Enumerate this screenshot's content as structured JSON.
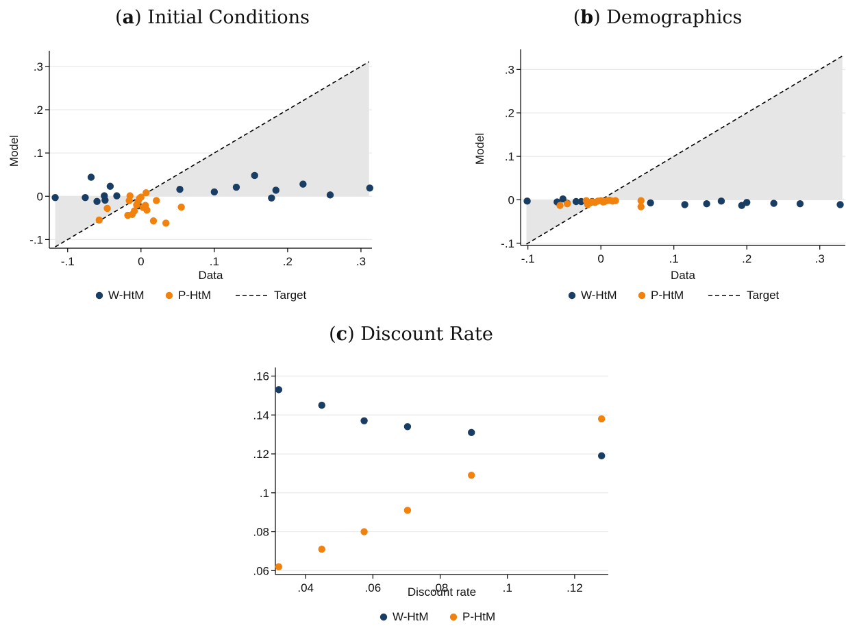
{
  "colors": {
    "w_htm": "#1a3e63",
    "p_htm": "#f2820e",
    "target": "#000000",
    "shade": "#e6e6e6",
    "grid": "#e8e8e8"
  },
  "chart_data": [
    {
      "panel_label": "a",
      "title": "Initial Conditions",
      "type": "scatter",
      "xlabel": "Data",
      "ylabel": "Model",
      "xlim": [
        -0.125,
        0.315
      ],
      "ylim": [
        -0.12,
        0.33
      ],
      "xticks": [
        -0.1,
        0,
        0.1,
        0.2,
        0.3
      ],
      "xtick_labels": [
        "-.1",
        "0",
        ".1",
        ".2",
        ".3"
      ],
      "yticks": [
        -0.1,
        0,
        0.1,
        0.2,
        0.3
      ],
      "ytick_labels": [
        "-.1",
        "0",
        ".1",
        ".2",
        ".3"
      ],
      "target_line": true,
      "shaded_between_zero_and_target": true,
      "legend": [
        "W-HtM",
        "P-HtM",
        "Target"
      ],
      "series": [
        {
          "name": "W-HtM",
          "points": [
            [
              -0.117,
              -0.003
            ],
            [
              -0.076,
              -0.003
            ],
            [
              -0.068,
              0.044
            ],
            [
              -0.06,
              -0.012
            ],
            [
              -0.05,
              0.001
            ],
            [
              -0.049,
              -0.009
            ],
            [
              -0.042,
              0.023
            ],
            [
              -0.033,
              0.001
            ],
            [
              -0.003,
              -0.022
            ],
            [
              0.053,
              0.016
            ],
            [
              0.1,
              0.01
            ],
            [
              0.13,
              0.021
            ],
            [
              0.155,
              0.048
            ],
            [
              0.178,
              -0.004
            ],
            [
              0.184,
              0.014
            ],
            [
              0.221,
              0.028
            ],
            [
              0.258,
              0.003
            ],
            [
              0.312,
              0.019
            ]
          ]
        },
        {
          "name": "P-HtM",
          "points": [
            [
              -0.057,
              -0.055
            ],
            [
              -0.046,
              -0.028
            ],
            [
              -0.018,
              -0.044
            ],
            [
              -0.016,
              -0.01
            ],
            [
              -0.015,
              0.001
            ],
            [
              -0.012,
              -0.042
            ],
            [
              -0.009,
              -0.034
            ],
            [
              -0.006,
              -0.02
            ],
            [
              -0.004,
              -0.012
            ],
            [
              -0.002,
              -0.005
            ],
            [
              0.0,
              -0.002
            ],
            [
              0.003,
              -0.026
            ],
            [
              0.004,
              -0.025
            ],
            [
              0.006,
              -0.021
            ],
            [
              0.007,
              0.008
            ],
            [
              0.008,
              -0.032
            ],
            [
              0.017,
              -0.057
            ],
            [
              0.021,
              -0.01
            ],
            [
              0.034,
              -0.062
            ],
            [
              0.055,
              -0.025
            ]
          ]
        }
      ]
    },
    {
      "panel_label": "b",
      "title": "Demographics",
      "type": "scatter",
      "xlabel": "Data",
      "ylabel": "Model",
      "xlim": [
        -0.11,
        0.335
      ],
      "ylim": [
        -0.105,
        0.34
      ],
      "xticks": [
        -0.1,
        0,
        0.1,
        0.2,
        0.3
      ],
      "xtick_labels": [
        "-.1",
        "0",
        ".1",
        ".2",
        ".3"
      ],
      "yticks": [
        -0.1,
        0,
        0.1,
        0.2,
        0.3
      ],
      "ytick_labels": [
        "-.1",
        "0",
        ".1",
        ".2",
        ".3"
      ],
      "target_line": true,
      "shaded_between_zero_and_target": true,
      "legend": [
        "W-HtM",
        "P-HtM",
        "Target"
      ],
      "series": [
        {
          "name": "W-HtM",
          "points": [
            [
              -0.101,
              -0.003
            ],
            [
              -0.06,
              -0.005
            ],
            [
              -0.052,
              0.002
            ],
            [
              -0.046,
              -0.008
            ],
            [
              -0.034,
              -0.004
            ],
            [
              -0.027,
              -0.004
            ],
            [
              -0.012,
              -0.004
            ],
            [
              0.068,
              -0.007
            ],
            [
              0.115,
              -0.011
            ],
            [
              0.145,
              -0.009
            ],
            [
              0.165,
              -0.003
            ],
            [
              0.193,
              -0.013
            ],
            [
              0.2,
              -0.006
            ],
            [
              0.237,
              -0.008
            ],
            [
              0.273,
              -0.009
            ],
            [
              0.328,
              -0.011
            ]
          ]
        },
        {
          "name": "P-HtM",
          "points": [
            [
              -0.056,
              -0.013
            ],
            [
              -0.046,
              -0.009
            ],
            [
              -0.02,
              -0.002
            ],
            [
              -0.018,
              -0.011
            ],
            [
              -0.015,
              -0.006
            ],
            [
              -0.012,
              -0.005
            ],
            [
              -0.008,
              -0.006
            ],
            [
              -0.004,
              -0.003
            ],
            [
              0.0,
              -0.002
            ],
            [
              0.003,
              -0.005
            ],
            [
              0.005,
              -0.004
            ],
            [
              0.008,
              -0.002
            ],
            [
              0.012,
              -0.001
            ],
            [
              0.016,
              -0.003
            ],
            [
              0.02,
              -0.002
            ],
            [
              0.055,
              -0.002
            ],
            [
              0.055,
              -0.016
            ]
          ]
        }
      ]
    },
    {
      "panel_label": "c",
      "title": "Discount Rate",
      "type": "scatter",
      "xlabel": "Discount rate",
      "ylabel": "",
      "xlim": [
        0.031,
        0.13
      ],
      "ylim": [
        0.058,
        0.163
      ],
      "xticks": [
        0.04,
        0.06,
        0.08,
        0.1,
        0.12
      ],
      "xtick_labels": [
        ".04",
        ".06",
        ".08",
        ".1",
        ".12"
      ],
      "yticks": [
        0.06,
        0.08,
        0.1,
        0.12,
        0.14,
        0.16
      ],
      "ytick_labels": [
        ".06",
        ".08",
        ".1",
        ".12",
        ".14",
        ".16"
      ],
      "target_line": false,
      "shaded_between_zero_and_target": false,
      "legend": [
        "W-HtM",
        "P-HtM"
      ],
      "series": [
        {
          "name": "W-HtM",
          "points": [
            [
              0.032,
              0.153
            ],
            [
              0.0448,
              0.145
            ],
            [
              0.0574,
              0.137
            ],
            [
              0.0703,
              0.134
            ],
            [
              0.0893,
              0.131
            ],
            [
              0.128,
              0.119
            ]
          ]
        },
        {
          "name": "P-HtM",
          "points": [
            [
              0.032,
              0.062
            ],
            [
              0.0448,
              0.071
            ],
            [
              0.0574,
              0.08
            ],
            [
              0.0703,
              0.091
            ],
            [
              0.0893,
              0.109
            ],
            [
              0.128,
              0.138
            ]
          ]
        }
      ]
    }
  ]
}
